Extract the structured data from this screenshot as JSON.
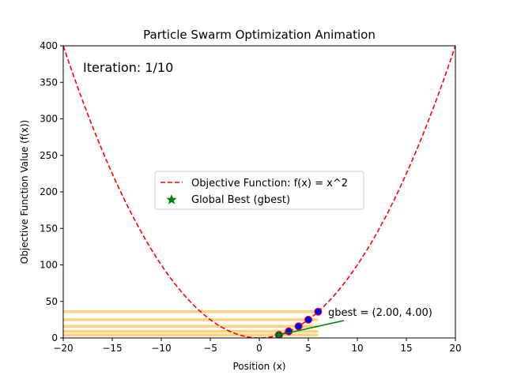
{
  "chart_data": {
    "type": "line",
    "title": "Particle Swarm Optimization Animation",
    "xlabel": "Position (x)",
    "ylabel": "Objective Function Value (f(x))",
    "xlim": [
      -20,
      20
    ],
    "ylim": [
      0,
      400
    ],
    "x_ticks": [
      -20,
      -15,
      -10,
      -5,
      0,
      5,
      10,
      15,
      20
    ],
    "x_tick_labels": [
      "−20",
      "−15",
      "−10",
      "−5",
      "0",
      "5",
      "10",
      "15",
      "20"
    ],
    "y_ticks": [
      0,
      50,
      100,
      150,
      200,
      250,
      300,
      350,
      400
    ],
    "y_tick_labels": [
      "0",
      "50",
      "100",
      "150",
      "200",
      "250",
      "300",
      "350",
      "400"
    ],
    "grid": false,
    "iteration_text": "Iteration: 1/10",
    "objective": {
      "name": "Objective Function: f(x) = x^2",
      "color": "#ff0000",
      "style": "dashed",
      "x_range": [
        -20,
        20
      ]
    },
    "particles": {
      "color": "#0000ff",
      "edge_color": "#ff0000",
      "x": [
        2.0,
        3.0,
        4.0,
        5.0,
        6.0
      ],
      "y": [
        4.0,
        9.0,
        16.0,
        25.0,
        36.0
      ]
    },
    "trail_bands": {
      "color": "#ffa500",
      "y": [
        4,
        9,
        16,
        25,
        36
      ]
    },
    "gbest": {
      "name": "Global Best (gbest)",
      "x": 2.0,
      "y": 4.0,
      "color": "#008000",
      "marker": "star",
      "annotation": "gbest = (2.00, 4.00)",
      "annotation_color": "#008000"
    },
    "legend_placement": "center"
  }
}
